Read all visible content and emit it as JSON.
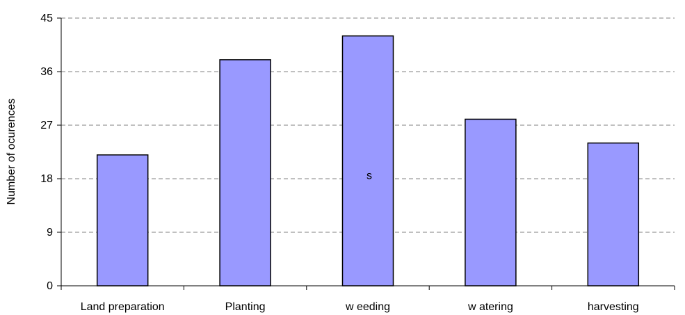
{
  "chart_data": {
    "type": "bar",
    "title": "",
    "xlabel": "",
    "ylabel": "Number of ocurences",
    "categories": [
      "Land preparation",
      "Planting",
      "w eeding",
      "w atering",
      "harvesting"
    ],
    "values": [
      22,
      38,
      42,
      28,
      24
    ],
    "ylim": [
      0,
      45
    ],
    "yticks": [
      0,
      9,
      18,
      27,
      36,
      45
    ],
    "grid": true,
    "legend": "none",
    "annotations": [
      {
        "text": "s",
        "x": "w eeding",
        "y": 18.5
      }
    ],
    "colors": {
      "bar_fill": "#9999ff",
      "bar_stroke": "#000000",
      "grid": "#808080",
      "axis": "#000000"
    }
  }
}
